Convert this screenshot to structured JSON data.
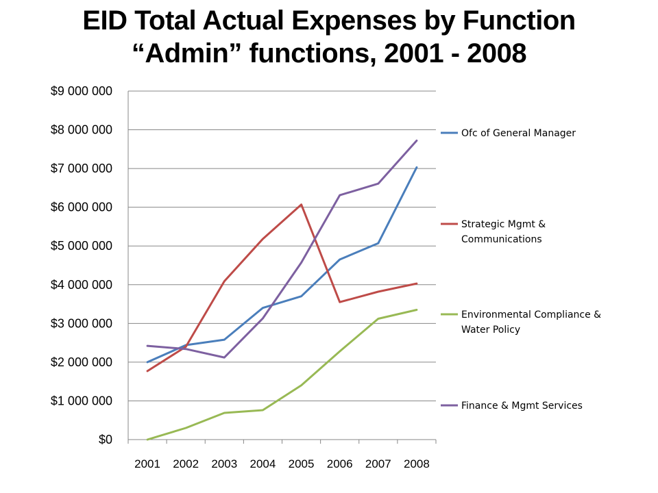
{
  "title": {
    "line1": "EID Total Actual Expenses by Function",
    "line2": "“Admin” functions, 2001 - 2008"
  },
  "chart_data": {
    "type": "line",
    "categories": [
      "2001",
      "2002",
      "2003",
      "2004",
      "2005",
      "2006",
      "2007",
      "2008"
    ],
    "y_tick_labels": [
      "$0",
      "$1 000 000",
      "$2 000 000",
      "$3 000 000",
      "$4 000 000",
      "$5 000 000",
      "$6 000 000",
      "$7 000 000",
      "$8 000 000",
      "$9 000 000"
    ],
    "ylim": [
      0,
      9000000
    ],
    "grid": true,
    "legend_position": "right",
    "series": [
      {
        "name": "Ofc of General Manager",
        "color": "#4a7ebb",
        "values": [
          2000000,
          2440000,
          2580000,
          3400000,
          3700000,
          4650000,
          5070000,
          7030000
        ]
      },
      {
        "name": "Strategic Mgmt & Communications",
        "legend_lines": [
          "Strategic Mgmt &",
          "Communications"
        ],
        "color": "#be4b48",
        "values": [
          1770000,
          2400000,
          4090000,
          5180000,
          6070000,
          3550000,
          3820000,
          4030000
        ]
      },
      {
        "name": "Environmental Compliance & Water Policy",
        "legend_lines": [
          "Environmental Compliance &",
          "Water Policy"
        ],
        "color": "#98b954",
        "values": [
          0,
          300000,
          690000,
          760000,
          1400000,
          2280000,
          3120000,
          3350000
        ]
      },
      {
        "name": "Finance & Mgmt Services",
        "color": "#7d60a0",
        "values": [
          2420000,
          2340000,
          2120000,
          3130000,
          4570000,
          6310000,
          6610000,
          7720000
        ]
      }
    ]
  }
}
